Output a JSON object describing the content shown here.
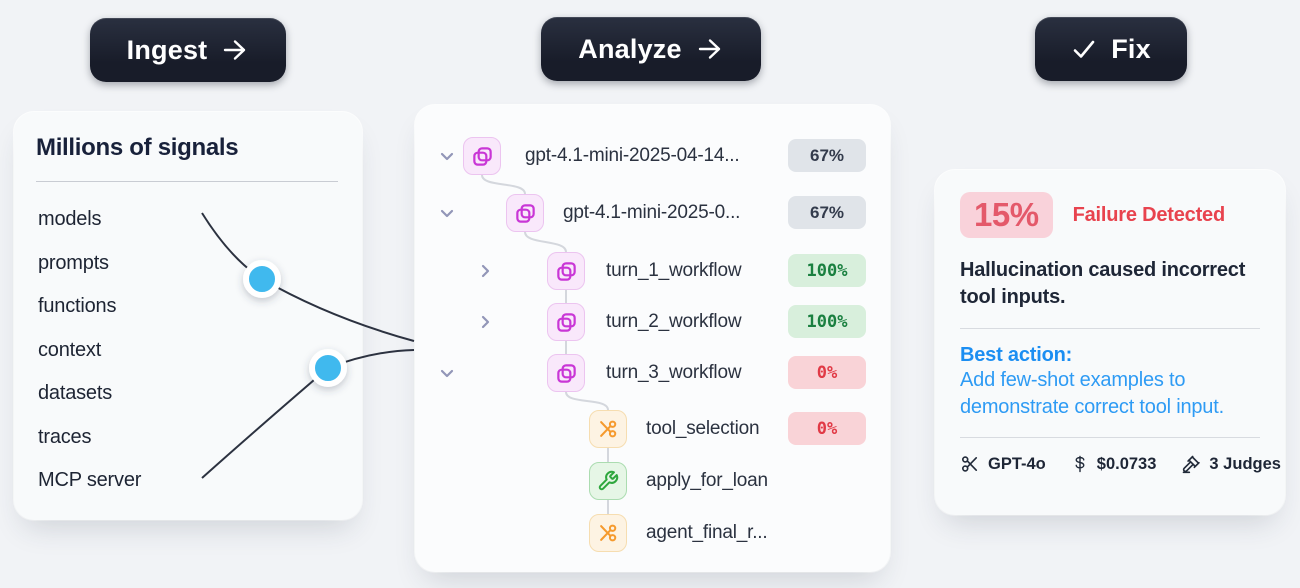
{
  "header": {
    "ingest_label": "Ingest",
    "analyze_label": "Analyze",
    "fix_label": "Fix"
  },
  "signals_panel": {
    "title": "Millions of signals",
    "items": [
      "models",
      "prompts",
      "functions",
      "context",
      "datasets",
      "traces",
      "MCP server"
    ]
  },
  "tree_panel": {
    "rows": [
      {
        "label": "gpt-4.1-mini-2025-04-14...",
        "badge": "67%",
        "badge_type": "neutral",
        "icon": "workflow-group-icon",
        "chevron": "down"
      },
      {
        "label": "gpt-4.1-mini-2025-0...",
        "badge": "67%",
        "badge_type": "neutral",
        "icon": "workflow-group-icon",
        "chevron": "down"
      },
      {
        "label": "turn_1_workflow",
        "badge": "100%",
        "badge_type": "success",
        "icon": "workflow-group-icon",
        "chevron": "right"
      },
      {
        "label": "turn_2_workflow",
        "badge": "100%",
        "badge_type": "success",
        "icon": "workflow-group-icon",
        "chevron": "right"
      },
      {
        "label": "turn_3_workflow",
        "badge": "0%",
        "badge_type": "error",
        "icon": "workflow-group-icon",
        "chevron": "down"
      },
      {
        "label": "tool_selection",
        "badge": "0%",
        "badge_type": "error",
        "icon": "branch-icon",
        "chevron": "none"
      },
      {
        "label": "apply_for_loan",
        "badge": null,
        "badge_type": null,
        "icon": "wrench-icon",
        "chevron": "none"
      },
      {
        "label": "agent_final_r...",
        "badge": null,
        "badge_type": null,
        "icon": "branch-icon",
        "chevron": "none"
      }
    ]
  },
  "failure_panel": {
    "percent": "15%",
    "status": "Failure Detected",
    "description": "Hallucination caused incorrect tool inputs.",
    "best_action_label": "Best action:",
    "best_action_text": "Add few-shot examples to demonstrate correct tool input.",
    "footer": {
      "model": "GPT-4o",
      "cost": "$0.0733",
      "judges": "3 Judges"
    }
  },
  "colors": {
    "accent_blue": "#41b9ee",
    "action_blue": "#2e9bf4",
    "failure_red": "#e8434e",
    "success_green": "#1a8040",
    "icon_pink": "#c936d6",
    "icon_orange": "#f59a2e",
    "icon_green": "#2fa73e",
    "button_dark": "#181c29"
  }
}
